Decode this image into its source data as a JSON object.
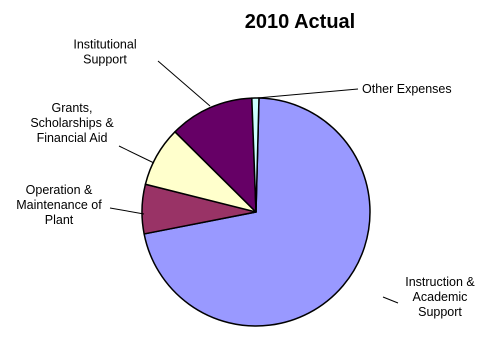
{
  "chart_data": {
    "type": "pie",
    "title": "2010 Actual",
    "slices": [
      {
        "label": [
          "Instruction &",
          "Academic",
          "Support"
        ],
        "value": 71.5,
        "color": "#9999ff"
      },
      {
        "label": [
          "Operation &",
          "Maintenance of",
          "Plant"
        ],
        "value": 7.0,
        "color": "#993366"
      },
      {
        "label": [
          "Grants,",
          "Scholarships &",
          "Financial Aid"
        ],
        "value": 8.5,
        "color": "#ffffcc"
      },
      {
        "label": [
          "Institutional",
          "Support"
        ],
        "value": 12.0,
        "color": "#660066"
      },
      {
        "label": [
          "Other Expenses"
        ],
        "value": 1.0,
        "color": "#ccffff"
      }
    ]
  }
}
